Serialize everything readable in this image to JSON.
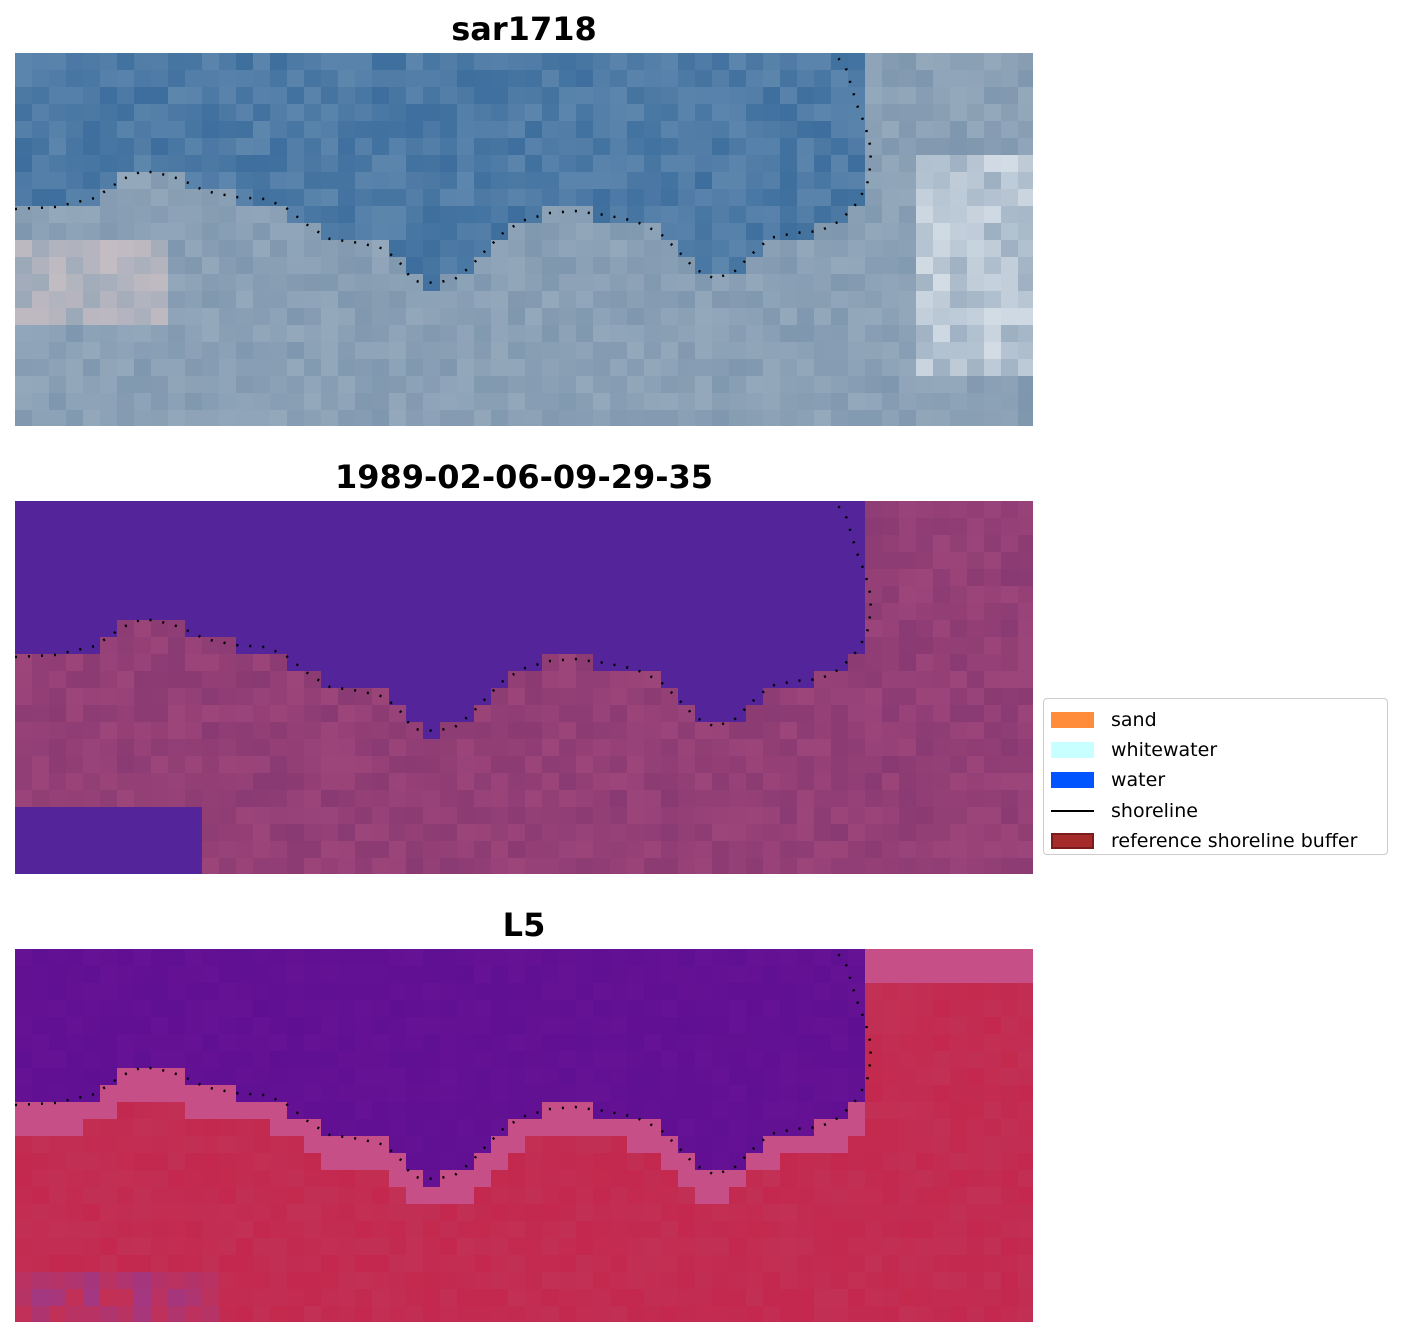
{
  "panels": [
    {
      "title": "sar1718"
    },
    {
      "title": "1989-02-06-09-29-35"
    },
    {
      "title": "L5"
    }
  ],
  "legend": {
    "items": [
      {
        "label": "sand",
        "kind": "patch",
        "color": "#ff8c3a",
        "edge": "none"
      },
      {
        "label": "whitewater",
        "kind": "patch",
        "color": "#c8ffff",
        "edge": "none"
      },
      {
        "label": "water",
        "kind": "patch",
        "color": "#0055ff",
        "edge": "none"
      },
      {
        "label": "shoreline",
        "kind": "line",
        "color": "#000000",
        "edge": "none"
      },
      {
        "label": "reference shoreline buffer",
        "kind": "patch",
        "color": "#a52a2a",
        "edge": "#7a1c1c"
      }
    ]
  },
  "colors": {
    "sar_water": "#4d7aa5",
    "sar_land": "#8aa0b5",
    "classified_water": "#53249a",
    "classified_land": "#8a3a72",
    "l5_water": "#661295",
    "l5_land": "#c23055",
    "shoreline_dots": "#000000"
  }
}
